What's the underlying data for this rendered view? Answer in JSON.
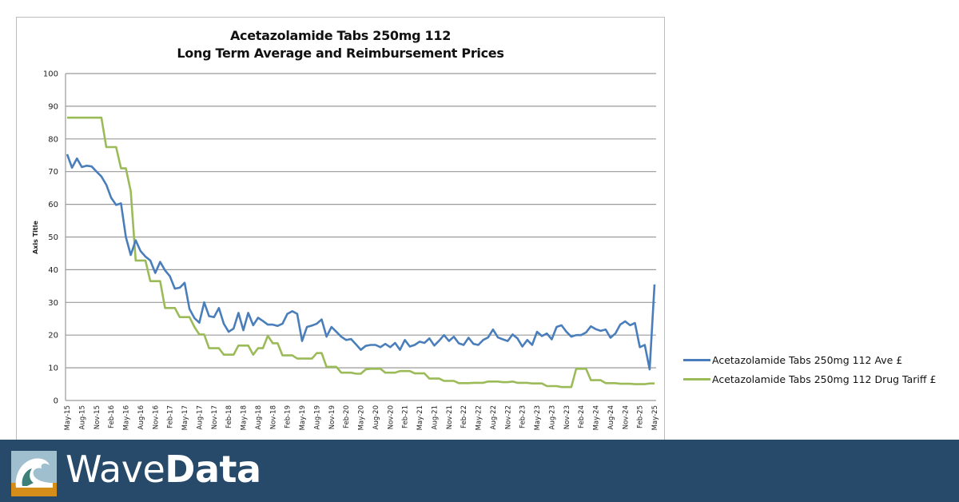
{
  "chart_data": {
    "type": "line",
    "title": "Acetazolamide Tabs 250mg 112",
    "subtitle": "Long Term Average and Reimbursement Prices",
    "xlabel": "",
    "ylabel": "Axis Title",
    "ylim": [
      0,
      100
    ],
    "yticks": [
      0,
      10,
      20,
      30,
      40,
      50,
      60,
      70,
      80,
      90,
      100
    ],
    "grid": true,
    "legend_position": "right",
    "x_start": "May-15",
    "x_end": "May-25",
    "x_frequency": "monthly",
    "tick_labels": [
      "May-15",
      "Aug-15",
      "Nov-15",
      "Feb-16",
      "May-16",
      "Aug-16",
      "Nov-16",
      "Feb-17",
      "May-17",
      "Aug-17",
      "Nov-17",
      "Feb-18",
      "May-18",
      "Aug-18",
      "Nov-18",
      "Feb-19",
      "May-19",
      "Aug-19",
      "Nov-19",
      "Feb-20",
      "May-20",
      "Aug-20",
      "Nov-20",
      "Feb-21",
      "May-21",
      "Aug-21",
      "Nov-21",
      "Feb-22",
      "May-22",
      "Aug-22",
      "Nov-22",
      "Feb-23",
      "May-23",
      "Aug-23",
      "Nov-23",
      "Feb-24",
      "May-24",
      "Aug-24",
      "Nov-24",
      "Feb-25",
      "May-25"
    ],
    "series": [
      {
        "name": "Acetazolamide Tabs 250mg 112 Ave £",
        "color": "#4a7ebb",
        "values": [
          75.3,
          71.2,
          74.0,
          71.4,
          71.8,
          71.6,
          70.0,
          68.5,
          66.0,
          62.0,
          59.8,
          60.3,
          50.0,
          44.5,
          49.0,
          45.7,
          44.0,
          42.8,
          39.0,
          42.4,
          39.8,
          38.0,
          34.2,
          34.5,
          36.0,
          28.0,
          25.2,
          23.8,
          30.0,
          25.8,
          25.5,
          28.3,
          23.5,
          21.0,
          22.0,
          26.8,
          21.5,
          26.8,
          23.0,
          25.3,
          24.3,
          23.2,
          23.2,
          22.8,
          23.5,
          26.5,
          27.3,
          26.5,
          18.2,
          22.5,
          22.9,
          23.5,
          24.8,
          19.5,
          22.5,
          21.0,
          19.5,
          18.5,
          18.8,
          17.2,
          15.5,
          16.7,
          17.0,
          17.0,
          16.3,
          17.3,
          16.3,
          17.6,
          15.5,
          18.5,
          16.5,
          17.0,
          18.0,
          17.6,
          19.0,
          16.8,
          18.3,
          20.0,
          18.2,
          19.5,
          17.5,
          17.0,
          19.2,
          17.3,
          17.0,
          18.5,
          19.3,
          21.7,
          19.3,
          18.7,
          18.2,
          20.2,
          19.0,
          16.5,
          18.5,
          17.0,
          21.0,
          19.7,
          20.5,
          18.7,
          22.5,
          23.0,
          21.0,
          19.5,
          20.0,
          20.0,
          20.8,
          22.7,
          21.8,
          21.3,
          21.7,
          19.2,
          20.5,
          23.2,
          24.2,
          23.0,
          23.7,
          16.3,
          17.0,
          9.5,
          35.5
        ]
      },
      {
        "name": "Acetazolamide Tabs 250mg 112 Drug Tariff £",
        "color": "#9bbb59",
        "values": [
          86.5,
          86.5,
          86.5,
          86.5,
          86.5,
          86.5,
          86.5,
          86.5,
          77.5,
          77.5,
          77.5,
          71.0,
          71.0,
          64.0,
          42.8,
          42.8,
          42.8,
          36.5,
          36.5,
          36.5,
          28.3,
          28.3,
          28.3,
          25.5,
          25.5,
          25.5,
          22.5,
          20.2,
          20.2,
          16.0,
          16.0,
          16.0,
          14.0,
          14.0,
          14.0,
          16.8,
          16.8,
          16.8,
          14.0,
          16.0,
          16.0,
          19.8,
          17.5,
          17.5,
          13.8,
          13.8,
          13.8,
          12.8,
          12.8,
          12.8,
          12.8,
          14.5,
          14.5,
          10.3,
          10.3,
          10.3,
          8.5,
          8.5,
          8.5,
          8.2,
          8.2,
          9.5,
          9.7,
          9.7,
          9.7,
          8.5,
          8.5,
          8.5,
          9.0,
          9.0,
          9.0,
          8.3,
          8.3,
          8.3,
          6.7,
          6.7,
          6.7,
          6.0,
          6.0,
          6.0,
          5.3,
          5.3,
          5.3,
          5.4,
          5.4,
          5.4,
          5.8,
          5.8,
          5.8,
          5.6,
          5.6,
          5.8,
          5.4,
          5.4,
          5.4,
          5.2,
          5.2,
          5.2,
          4.4,
          4.4,
          4.4,
          4.1,
          4.1,
          4.1,
          9.7,
          9.7,
          9.7,
          6.2,
          6.2,
          6.2,
          5.3,
          5.3,
          5.3,
          5.1,
          5.1,
          5.1,
          5.0,
          5.0,
          5.0,
          5.2,
          5.2
        ]
      }
    ]
  },
  "footer": {
    "brand_light": "Wave",
    "brand_bold": "Data",
    "background": "#274a6b",
    "logo": "wave-logo-icon"
  }
}
